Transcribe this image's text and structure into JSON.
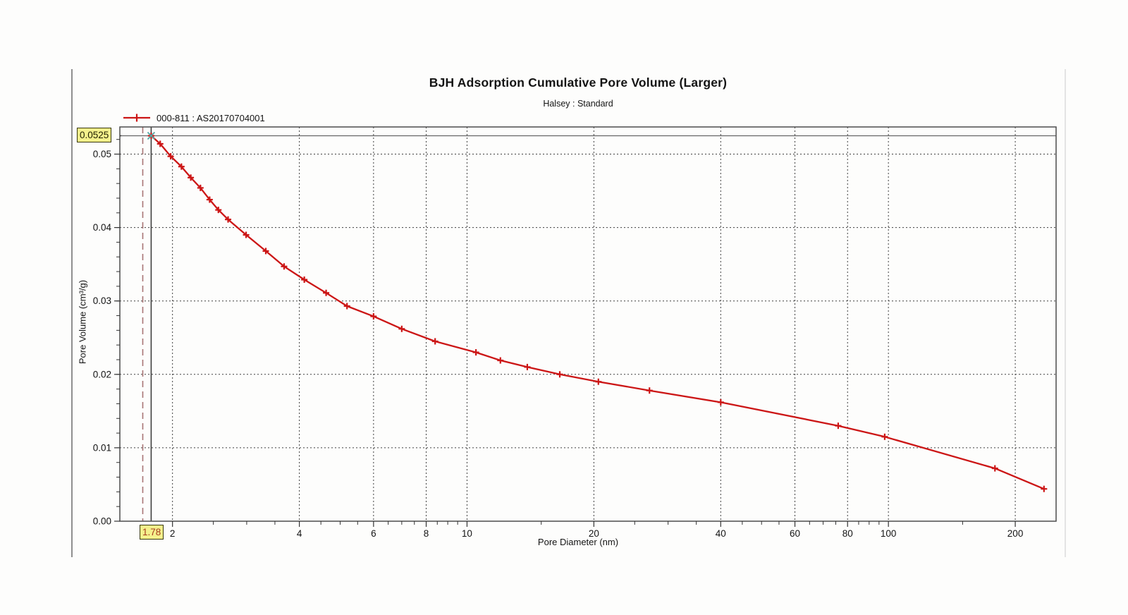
{
  "header": {
    "title": "BJH Adsorption Cumulative Pore Volume (Larger)",
    "subtitle": "Halsey : Standard"
  },
  "legend": {
    "series_label": "000-811 : AS20170704001",
    "color": "#cc1616"
  },
  "axes": {
    "x_title": "Pore Diameter (nm)",
    "y_title": "Pore Volume (cm³/g)"
  },
  "cursor_readout": {
    "y_value": "0.0525",
    "x_value": "1.78",
    "box_bg": "#f5f18c",
    "y_text_color": "#201f00",
    "x_text_color": "#a63c1e"
  },
  "chart_data": {
    "type": "line",
    "title": "BJH Adsorption Cumulative Pore Volume (Larger)",
    "subtitle": "Halsey : Standard",
    "xlabel": "Pore Diameter (nm)",
    "ylabel": "Pore Volume (cm³/g)",
    "x_scale": "log",
    "xlim": [
      1.5,
      250
    ],
    "ylim": [
      0,
      0.0537
    ],
    "grid": true,
    "legend_position": "top-left",
    "x_ticks": [
      {
        "v": 2,
        "label": "2"
      },
      {
        "v": 4,
        "label": "4"
      },
      {
        "v": 6,
        "label": "6"
      },
      {
        "v": 8,
        "label": "8"
      },
      {
        "v": 10,
        "label": "10"
      },
      {
        "v": 20,
        "label": "20"
      },
      {
        "v": 40,
        "label": "40"
      },
      {
        "v": 60,
        "label": "60"
      },
      {
        "v": 80,
        "label": "80"
      },
      {
        "v": 100,
        "label": "100"
      },
      {
        "v": 200,
        "label": "200"
      }
    ],
    "x_minor_ticks": [
      2.5,
      3,
      3.5,
      4.5,
      5,
      5.5,
      6.5,
      7,
      7.5,
      8.5,
      9,
      9.5,
      15,
      25,
      30,
      35,
      45,
      50,
      55,
      65,
      70,
      75,
      85,
      90,
      95,
      150
    ],
    "y_ticks": [
      {
        "v": 0.0,
        "label": "0.00"
      },
      {
        "v": 0.01,
        "label": "0.01"
      },
      {
        "v": 0.02,
        "label": "0.02"
      },
      {
        "v": 0.03,
        "label": "0.03"
      },
      {
        "v": 0.04,
        "label": "0.04"
      },
      {
        "v": 0.05,
        "label": "0.05"
      }
    ],
    "y_minor_step": 0.002,
    "series": [
      {
        "name": "000-811 : AS20170704001",
        "color": "#cc1616",
        "marker": "plus",
        "x": [
          1.78,
          1.87,
          1.98,
          2.1,
          2.21,
          2.33,
          2.45,
          2.57,
          2.71,
          2.99,
          3.33,
          3.68,
          4.11,
          4.63,
          5.19,
          6.0,
          7.0,
          8.4,
          10.5,
          12.0,
          13.9,
          16.6,
          20.5,
          27.1,
          40.0,
          76.0,
          98.0,
          179.0,
          234.0
        ],
        "y": [
          0.0525,
          0.0514,
          0.0497,
          0.0483,
          0.0468,
          0.0454,
          0.0438,
          0.0424,
          0.0411,
          0.039,
          0.0368,
          0.0347,
          0.0329,
          0.0311,
          0.0293,
          0.0279,
          0.0262,
          0.0245,
          0.023,
          0.0219,
          0.021,
          0.02,
          0.019,
          0.0178,
          0.0162,
          0.013,
          0.0115,
          0.0072,
          0.0044
        ]
      }
    ],
    "crosshair": {
      "x": 1.78,
      "y": 0.0525,
      "cursor_marker_color": "#54a8a4",
      "h_line_color": "#666666",
      "v_line_color": "#3d3d3d"
    },
    "reference_line_x": {
      "x": 1.7,
      "color": "#a87474",
      "style": "dashed"
    },
    "frame_color": "#4c4c4c",
    "grid_color": "#3f3f3f"
  }
}
